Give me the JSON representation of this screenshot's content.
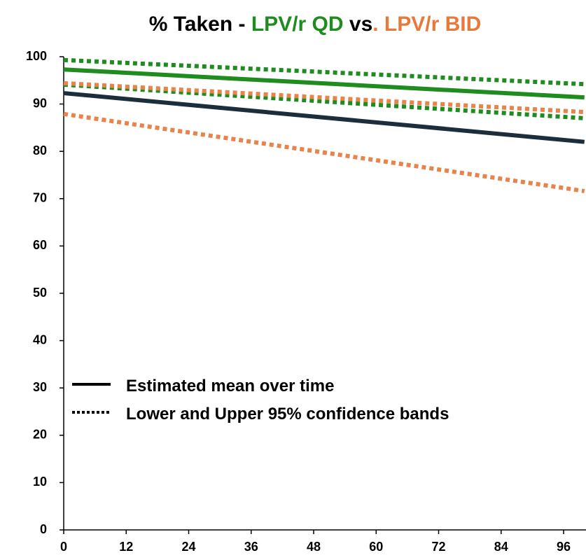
{
  "chart_data": {
    "type": "line",
    "title": [
      "% Taken - ",
      "LPV/r QD",
      " vs",
      ". LPV/r BID"
    ],
    "title_colors": [
      "#000000",
      "#1e8c1e",
      "#000000",
      "#e8793a"
    ],
    "x": [
      0,
      100
    ],
    "xlim": [
      0,
      100
    ],
    "xticks": [
      0,
      12,
      24,
      36,
      48,
      60,
      72,
      84,
      96
    ],
    "ylim": [
      0,
      100
    ],
    "yticks": [
      0,
      10,
      20,
      30,
      40,
      50,
      60,
      70,
      80,
      90,
      100
    ],
    "series": [
      {
        "color": "#1e8c1e",
        "style": "dotted",
        "values": [
          99.3,
          94.2
        ]
      },
      {
        "color": "#1e8c1e",
        "style": "solid",
        "values": [
          97.3,
          91.4
        ]
      },
      {
        "color": "#1e8c1e",
        "style": "dotted",
        "values": [
          94.1,
          87.0
        ]
      },
      {
        "color": "#e8834a",
        "style": "dotted",
        "values": [
          94.4,
          88.3
        ]
      },
      {
        "color": "#1c2e3c",
        "style": "solid",
        "values": [
          92.3,
          82.0
        ]
      },
      {
        "color": "#e8834a",
        "style": "dotted",
        "values": [
          87.9,
          71.6
        ]
      }
    ],
    "legend": [
      {
        "label": "Estimated mean over time",
        "style": "solid"
      },
      {
        "label": "Lower and Upper 95% confidence bands",
        "style": "dotted"
      }
    ]
  }
}
